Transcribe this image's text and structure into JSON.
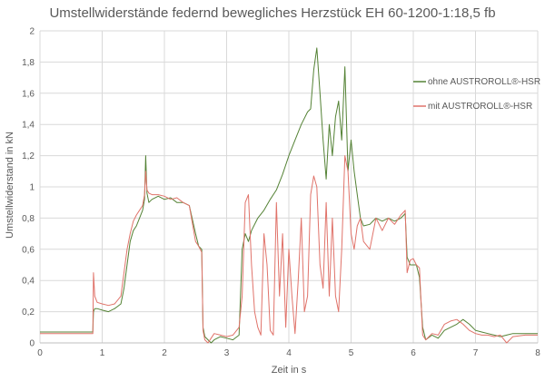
{
  "chart_data": {
    "type": "line",
    "title": "Umstellwiderstände federnd bewegliches Herzstück EH 60-1200-1:18,5 fb",
    "xlabel": "Zeit in s",
    "ylabel": "Umstellwiderstand in kN",
    "xlim": [
      0,
      8
    ],
    "ylim": [
      0,
      2
    ],
    "x_ticks": [
      "0",
      "1",
      "2",
      "3",
      "4",
      "5",
      "6",
      "7",
      "8"
    ],
    "y_ticks": [
      "0",
      "0,2",
      "0,4",
      "0,6",
      "0,8",
      "1",
      "1,2",
      "1,4",
      "1,6",
      "1,8",
      "2"
    ],
    "grid": true,
    "legend_position": "right",
    "series": [
      {
        "name": "ohne AUSTROROLL®-HSR",
        "color": "#548235",
        "x": [
          0,
          0.3,
          0.6,
          0.85,
          0.86,
          0.88,
          0.92,
          1.0,
          1.1,
          1.2,
          1.3,
          1.35,
          1.4,
          1.45,
          1.5,
          1.55,
          1.6,
          1.65,
          1.68,
          1.7,
          1.72,
          1.75,
          1.8,
          1.9,
          2.0,
          2.1,
          2.2,
          2.3,
          2.4,
          2.5,
          2.55,
          2.6,
          2.62,
          2.65,
          2.7,
          2.75,
          2.8,
          2.9,
          3.0,
          3.1,
          3.2,
          3.25,
          3.3,
          3.35,
          3.4,
          3.5,
          3.6,
          3.7,
          3.8,
          3.9,
          4.0,
          4.1,
          4.2,
          4.3,
          4.35,
          4.4,
          4.45,
          4.5,
          4.55,
          4.6,
          4.65,
          4.7,
          4.75,
          4.8,
          4.85,
          4.9,
          4.95,
          5.0,
          5.05,
          5.1,
          5.15,
          5.2,
          5.3,
          5.4,
          5.5,
          5.6,
          5.7,
          5.8,
          5.85,
          5.87,
          5.9,
          5.95,
          6.0,
          6.05,
          6.1,
          6.15,
          6.2,
          6.3,
          6.4,
          6.5,
          6.6,
          6.7,
          6.8,
          6.9,
          7.0,
          7.1,
          7.2,
          7.3,
          7.4,
          7.5,
          7.6,
          7.8,
          8.0
        ],
        "values": [
          0.07,
          0.07,
          0.07,
          0.07,
          0.2,
          0.22,
          0.22,
          0.21,
          0.2,
          0.22,
          0.25,
          0.35,
          0.5,
          0.65,
          0.72,
          0.75,
          0.8,
          0.85,
          0.92,
          1.2,
          0.96,
          0.9,
          0.92,
          0.94,
          0.92,
          0.93,
          0.9,
          0.9,
          0.88,
          0.7,
          0.62,
          0.6,
          0.1,
          0.04,
          0.02,
          0.0,
          0.02,
          0.04,
          0.03,
          0.02,
          0.05,
          0.6,
          0.7,
          0.65,
          0.72,
          0.8,
          0.85,
          0.92,
          0.98,
          1.08,
          1.2,
          1.3,
          1.4,
          1.48,
          1.5,
          1.75,
          1.89,
          1.6,
          1.3,
          1.05,
          1.4,
          1.2,
          1.45,
          1.55,
          1.3,
          1.77,
          1.1,
          1.3,
          1.1,
          0.95,
          0.8,
          0.75,
          0.76,
          0.8,
          0.78,
          0.8,
          0.78,
          0.8,
          0.82,
          0.83,
          0.55,
          0.5,
          0.5,
          0.5,
          0.42,
          0.1,
          0.02,
          0.05,
          0.03,
          0.08,
          0.1,
          0.12,
          0.15,
          0.12,
          0.08,
          0.07,
          0.06,
          0.05,
          0.04,
          0.05,
          0.06,
          0.06,
          0.06
        ]
      },
      {
        "name": "mit AUSTROROLL®-HSR",
        "color": "#e0736a",
        "x": [
          0,
          0.3,
          0.6,
          0.85,
          0.86,
          0.88,
          0.92,
          1.0,
          1.1,
          1.2,
          1.3,
          1.35,
          1.4,
          1.45,
          1.5,
          1.55,
          1.6,
          1.65,
          1.68,
          1.7,
          1.72,
          1.75,
          1.8,
          1.9,
          2.0,
          2.1,
          2.2,
          2.3,
          2.4,
          2.5,
          2.55,
          2.6,
          2.62,
          2.65,
          2.7,
          2.75,
          2.8,
          2.9,
          3.0,
          3.1,
          3.2,
          3.25,
          3.3,
          3.35,
          3.4,
          3.45,
          3.5,
          3.55,
          3.6,
          3.65,
          3.7,
          3.75,
          3.8,
          3.85,
          3.9,
          3.95,
          4.0,
          4.05,
          4.1,
          4.15,
          4.2,
          4.25,
          4.3,
          4.35,
          4.4,
          4.45,
          4.5,
          4.55,
          4.6,
          4.65,
          4.7,
          4.75,
          4.8,
          4.85,
          4.9,
          4.95,
          5.0,
          5.05,
          5.1,
          5.15,
          5.2,
          5.3,
          5.4,
          5.5,
          5.6,
          5.7,
          5.8,
          5.85,
          5.87,
          5.9,
          5.95,
          6.0,
          6.05,
          6.1,
          6.15,
          6.2,
          6.3,
          6.4,
          6.5,
          6.6,
          6.7,
          6.8,
          6.9,
          7.0,
          7.1,
          7.2,
          7.3,
          7.4,
          7.5,
          7.6,
          7.8,
          8.0
        ],
        "values": [
          0.06,
          0.06,
          0.06,
          0.06,
          0.45,
          0.3,
          0.26,
          0.25,
          0.24,
          0.25,
          0.3,
          0.45,
          0.6,
          0.7,
          0.78,
          0.82,
          0.85,
          0.88,
          0.95,
          1.1,
          0.98,
          0.96,
          0.95,
          0.95,
          0.94,
          0.92,
          0.93,
          0.9,
          0.88,
          0.65,
          0.62,
          0.58,
          0.08,
          0.02,
          0.0,
          0.03,
          0.06,
          0.05,
          0.04,
          0.05,
          0.1,
          0.3,
          0.9,
          0.95,
          0.5,
          0.2,
          0.1,
          0.05,
          0.7,
          0.5,
          0.08,
          0.05,
          0.9,
          0.3,
          0.7,
          0.1,
          0.6,
          0.3,
          0.06,
          0.4,
          0.8,
          0.2,
          0.3,
          0.95,
          1.07,
          1.0,
          0.5,
          0.35,
          0.9,
          0.3,
          0.8,
          0.3,
          0.2,
          0.6,
          1.2,
          1.1,
          0.7,
          0.6,
          0.75,
          0.8,
          0.65,
          0.6,
          0.8,
          0.72,
          0.8,
          0.76,
          0.82,
          0.84,
          0.85,
          0.45,
          0.53,
          0.54,
          0.5,
          0.48,
          0.05,
          0.02,
          0.06,
          0.05,
          0.12,
          0.14,
          0.15,
          0.12,
          0.08,
          0.06,
          0.05,
          0.05,
          0.04,
          0.05,
          0.0,
          0.04,
          0.05,
          0.05
        ]
      }
    ]
  }
}
